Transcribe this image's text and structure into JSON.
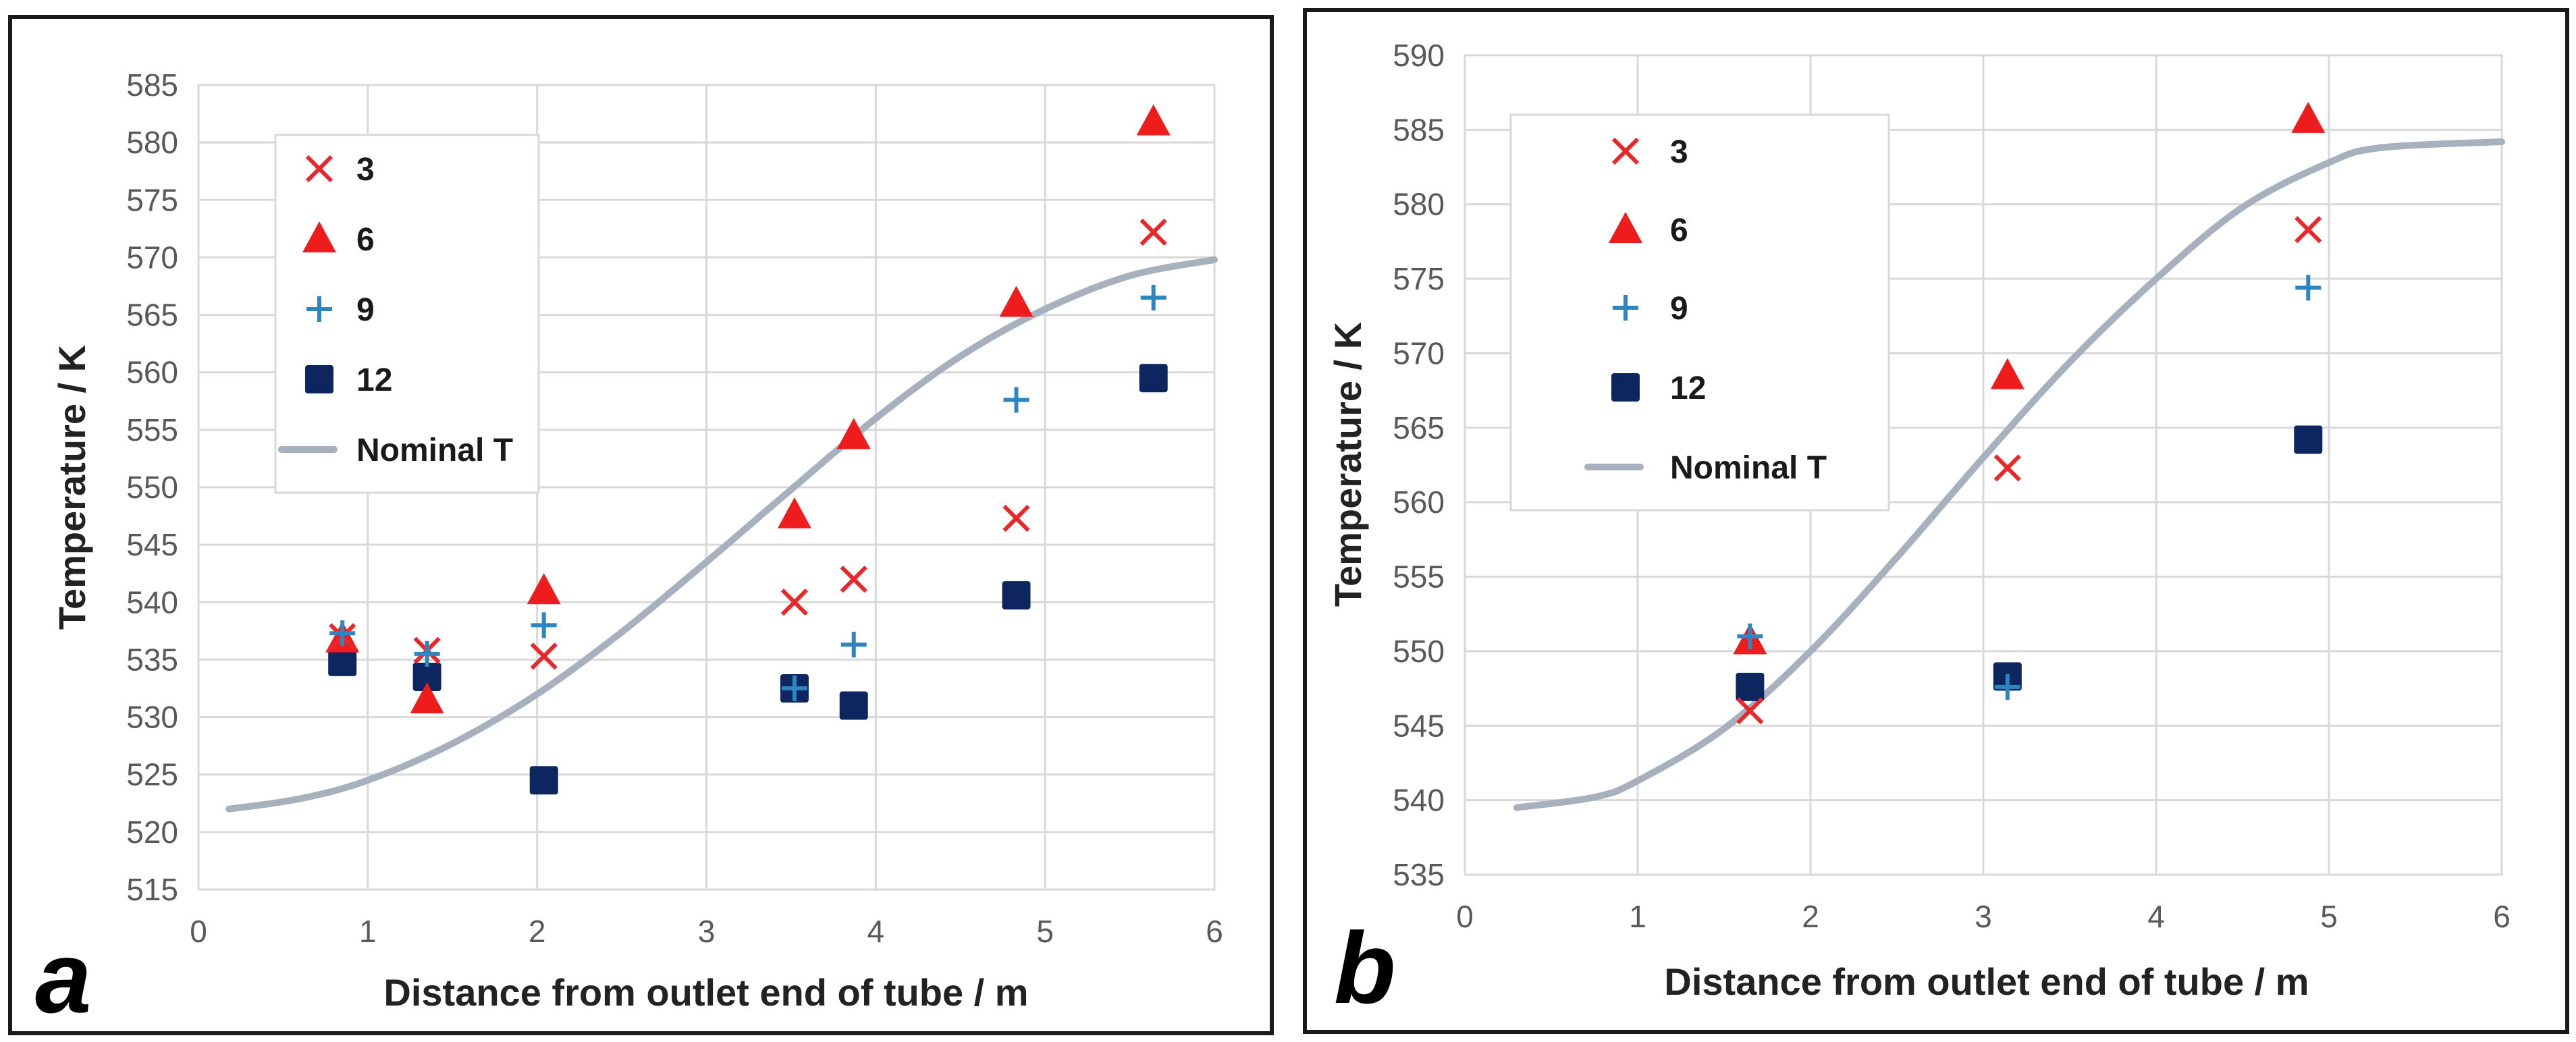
{
  "chart_data": [
    {
      "type": "scatter",
      "panel_label": "a",
      "xlabel": "Distance from outlet end of tube / m",
      "ylabel": "Temperature / K",
      "xlim": [
        0,
        6
      ],
      "ylim": [
        515,
        585
      ],
      "xticks": [
        "0",
        "1",
        "2",
        "3",
        "4",
        "5",
        "6"
      ],
      "yticks": [
        "515",
        "520",
        "525",
        "530",
        "535",
        "540",
        "545",
        "550",
        "555",
        "560",
        "565",
        "570",
        "575",
        "580",
        "585"
      ],
      "legend_position": "top-left",
      "series": [
        {
          "name": "3",
          "marker": "x",
          "color": "#e8282a",
          "points": [
            [
              0.85,
              537
            ],
            [
              1.35,
              535.8
            ],
            [
              2.04,
              535.3
            ],
            [
              3.52,
              540
            ],
            [
              3.87,
              542
            ],
            [
              4.83,
              547.3
            ],
            [
              5.64,
              572.2
            ]
          ]
        },
        {
          "name": "6",
          "marker": "triangle",
          "color": "#ee1c1c",
          "points": [
            [
              0.85,
              536.8
            ],
            [
              1.35,
              531.5
            ],
            [
              2.04,
              541
            ],
            [
              3.52,
              547.6
            ],
            [
              3.87,
              554.5
            ],
            [
              4.83,
              566
            ],
            [
              5.64,
              581.8
            ]
          ]
        },
        {
          "name": "9",
          "marker": "plus",
          "color": "#2e86c1",
          "points": [
            [
              0.85,
              537.3
            ],
            [
              1.35,
              535.5
            ],
            [
              2.04,
              538
            ],
            [
              3.52,
              532.5
            ],
            [
              3.87,
              536.3
            ],
            [
              4.83,
              557.6
            ],
            [
              5.64,
              566.5
            ]
          ]
        },
        {
          "name": "12",
          "marker": "square",
          "color": "#0e2660",
          "points": [
            [
              0.85,
              534.8
            ],
            [
              1.35,
              533.5
            ],
            [
              2.04,
              524.5
            ],
            [
              3.52,
              532.5
            ],
            [
              3.87,
              531
            ],
            [
              4.83,
              540.6
            ],
            [
              5.64,
              559.5
            ]
          ]
        },
        {
          "name": "Nominal T",
          "marker": "line",
          "color": "#a6b1bd",
          "points": [
            [
              0.18,
              522
            ],
            [
              0.6,
              522.9
            ],
            [
              1.0,
              524.5
            ],
            [
              1.5,
              527.7
            ],
            [
              2.0,
              532
            ],
            [
              2.5,
              537.4
            ],
            [
              3.0,
              543.5
            ],
            [
              3.5,
              549.8
            ],
            [
              4.0,
              556
            ],
            [
              4.5,
              561.4
            ],
            [
              5.0,
              565.5
            ],
            [
              5.5,
              568.4
            ],
            [
              6.0,
              569.8
            ]
          ]
        }
      ]
    },
    {
      "type": "scatter",
      "panel_label": "b",
      "xlabel": "Distance from outlet end of tube / m",
      "ylabel": "Temperature / K",
      "xlim": [
        0,
        6
      ],
      "ylim": [
        535,
        590
      ],
      "xticks": [
        "0",
        "1",
        "2",
        "3",
        "4",
        "5",
        "6"
      ],
      "yticks": [
        "535",
        "540",
        "545",
        "550",
        "555",
        "560",
        "565",
        "570",
        "575",
        "580",
        "585",
        "590"
      ],
      "legend_position": "top-left",
      "series": [
        {
          "name": "3",
          "marker": "x",
          "color": "#e8282a",
          "points": [
            [
              1.65,
              546
            ],
            [
              3.14,
              562.3
            ],
            [
              4.88,
              578.3
            ]
          ]
        },
        {
          "name": "6",
          "marker": "triangle",
          "color": "#ee1c1c",
          "points": [
            [
              1.65,
              550.7
            ],
            [
              3.14,
              568.5
            ],
            [
              4.88,
              585.7
            ]
          ]
        },
        {
          "name": "9",
          "marker": "plus",
          "color": "#2e86c1",
          "points": [
            [
              1.65,
              551
            ],
            [
              3.14,
              547.6
            ],
            [
              4.88,
              574.4
            ]
          ]
        },
        {
          "name": "12",
          "marker": "square",
          "color": "#0e2660",
          "points": [
            [
              1.65,
              547.6
            ],
            [
              3.14,
              548.3
            ],
            [
              4.88,
              564.2
            ]
          ]
        },
        {
          "name": "Nominal T",
          "marker": "line",
          "color": "#a6b1bd",
          "points": [
            [
              0.3,
              539.5
            ],
            [
              0.75,
              540.2
            ],
            [
              1.0,
              541.3
            ],
            [
              1.5,
              544.8
            ],
            [
              2.0,
              550
            ],
            [
              2.5,
              556.3
            ],
            [
              3.0,
              563
            ],
            [
              3.5,
              569.4
            ],
            [
              4.0,
              575
            ],
            [
              4.5,
              579.8
            ],
            [
              5.0,
              582.8
            ],
            [
              5.3,
              583.8
            ],
            [
              6.0,
              584.2
            ]
          ]
        }
      ]
    }
  ]
}
